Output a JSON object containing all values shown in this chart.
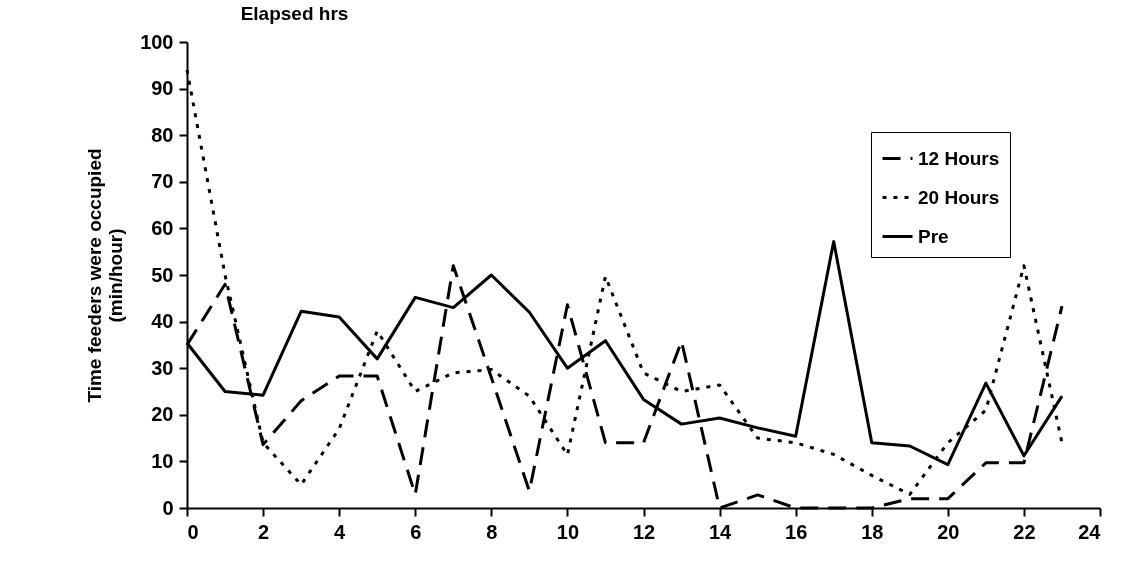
{
  "chart_data": {
    "type": "line",
    "title": "Elapsed hrs",
    "ylabel": "Time feeders were occupied\n(min/hour)",
    "x": [
      0,
      1,
      2,
      3,
      4,
      5,
      6,
      7,
      8,
      9,
      10,
      11,
      12,
      13,
      14,
      15,
      16,
      17,
      18,
      19,
      20,
      21,
      22,
      23
    ],
    "series": [
      {
        "name": "12 Hours",
        "color": "#000000",
        "line_style": "dashed",
        "values": [
          35,
          48,
          13.6,
          23,
          28.3,
          28.3,
          2.9,
          52,
          28,
          3.6,
          43.6,
          14,
          14,
          35.8,
          0,
          2.8,
          0,
          0,
          0,
          2,
          2,
          9.7,
          9.7,
          43.3
        ]
      },
      {
        "name": "20 Hours",
        "color": "#000000",
        "line_style": "dotted",
        "values": [
          94,
          50,
          14,
          5,
          17,
          38,
          25,
          29,
          29.7,
          24,
          11.4,
          49.7,
          29,
          25,
          26.4,
          15,
          14,
          11.5,
          7,
          2.9,
          14,
          21,
          52,
          14
        ]
      },
      {
        "name": "Pre",
        "color": "#000000",
        "line_style": "solid",
        "values": [
          35.4,
          25,
          24.2,
          42.2,
          41,
          32,
          45.2,
          43,
          50,
          42,
          30,
          35.9,
          23.3,
          18,
          19.3,
          17.2,
          15.4,
          57.2,
          14,
          13.3,
          9.3,
          26.8,
          11.2,
          24
        ]
      }
    ],
    "xlim": [
      0,
      24
    ],
    "xticks": [
      0,
      2,
      4,
      6,
      8,
      10,
      12,
      14,
      16,
      18,
      20,
      22,
      24
    ],
    "ylim": [
      0,
      100
    ],
    "yticks": [
      0,
      10,
      20,
      30,
      40,
      50,
      60,
      70,
      80,
      90,
      100
    ],
    "grid": false,
    "legend": "top right",
    "marker": "none"
  }
}
